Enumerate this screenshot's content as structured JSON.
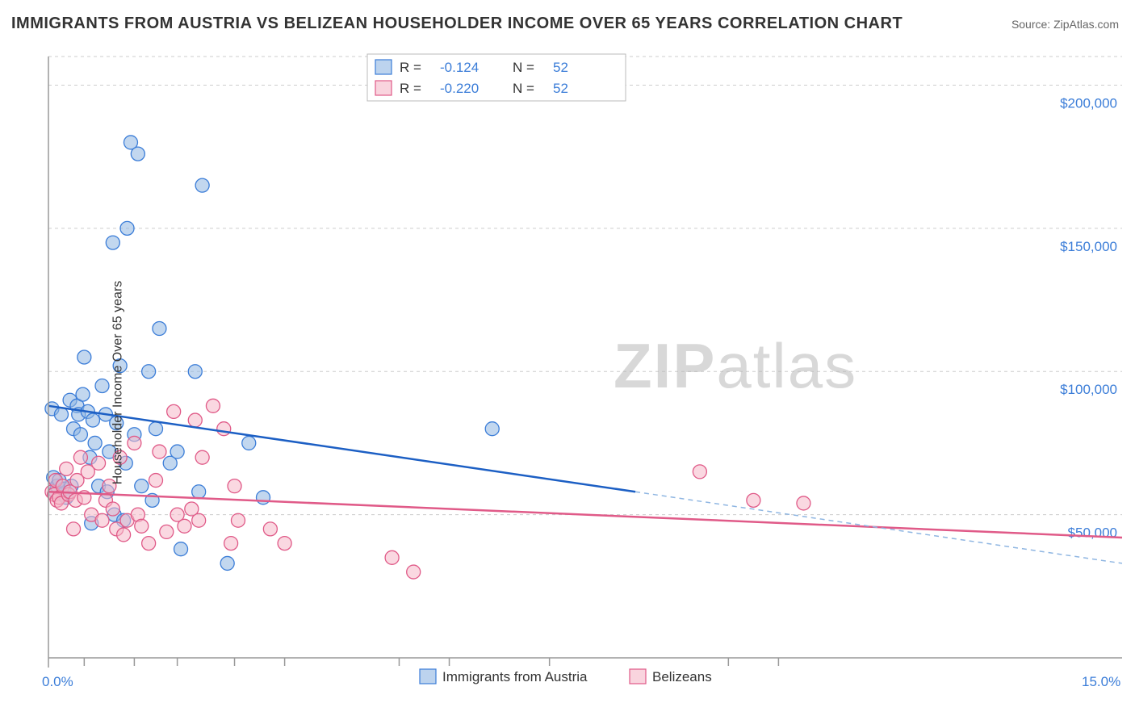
{
  "title": "IMMIGRANTS FROM AUSTRIA VS BELIZEAN HOUSEHOLDER INCOME OVER 65 YEARS CORRELATION CHART",
  "source": "Source: ZipAtlas.com",
  "ylabel": "Householder Income Over 65 years",
  "watermark_a": "ZIP",
  "watermark_b": "atlas",
  "chart": {
    "type": "scatter-regression",
    "background_color": "#ffffff",
    "grid_color": "#cccccc",
    "axis_color": "#999999",
    "label_color": "#3b7dd8",
    "xlim": [
      0,
      15
    ],
    "ylim": [
      0,
      210000
    ],
    "y_ticks": [
      50000,
      100000,
      150000,
      200000
    ],
    "y_tick_labels": [
      "$50,000",
      "$100,000",
      "$150,000",
      "$200,000"
    ],
    "x_minor_ticks": [
      0.5,
      1.2,
      1.8,
      2.6,
      3.3,
      4.9,
      5.6,
      7.0,
      9.5,
      10.2
    ],
    "x_min_label": "0.0%",
    "x_max_label": "15.0%",
    "marker_radius": 8.5,
    "series": [
      {
        "name": "Immigrants from Austria",
        "css": "series-blue",
        "R": "-0.124",
        "N": "52",
        "trend_solid": {
          "x1": 0,
          "y1": 88000,
          "x2": 8.2,
          "y2": 58000
        },
        "trend_dash": {
          "x1": 8.2,
          "y1": 58000,
          "x2": 15,
          "y2": 33000
        },
        "points": [
          [
            0.05,
            87000
          ],
          [
            0.07,
            63000
          ],
          [
            0.1,
            58000
          ],
          [
            0.12,
            60000
          ],
          [
            0.15,
            62000
          ],
          [
            0.18,
            85000
          ],
          [
            0.2,
            57000
          ],
          [
            0.22,
            59000
          ],
          [
            0.25,
            56000
          ],
          [
            0.3,
            90000
          ],
          [
            0.32,
            60000
          ],
          [
            0.35,
            80000
          ],
          [
            0.4,
            88000
          ],
          [
            0.42,
            85000
          ],
          [
            0.45,
            78000
          ],
          [
            0.48,
            92000
          ],
          [
            0.5,
            105000
          ],
          [
            0.55,
            86000
          ],
          [
            0.58,
            70000
          ],
          [
            0.6,
            47000
          ],
          [
            0.62,
            83000
          ],
          [
            0.65,
            75000
          ],
          [
            0.7,
            60000
          ],
          [
            0.75,
            95000
          ],
          [
            0.8,
            85000
          ],
          [
            0.82,
            58000
          ],
          [
            0.85,
            72000
          ],
          [
            0.9,
            145000
          ],
          [
            0.92,
            50000
          ],
          [
            0.95,
            82000
          ],
          [
            1.0,
            102000
          ],
          [
            1.05,
            48000
          ],
          [
            1.08,
            68000
          ],
          [
            1.1,
            150000
          ],
          [
            1.15,
            180000
          ],
          [
            1.2,
            78000
          ],
          [
            1.25,
            176000
          ],
          [
            1.3,
            60000
          ],
          [
            1.4,
            100000
          ],
          [
            1.45,
            55000
          ],
          [
            1.5,
            80000
          ],
          [
            1.55,
            115000
          ],
          [
            1.7,
            68000
          ],
          [
            1.8,
            72000
          ],
          [
            1.85,
            38000
          ],
          [
            2.05,
            100000
          ],
          [
            2.1,
            58000
          ],
          [
            2.15,
            165000
          ],
          [
            2.5,
            33000
          ],
          [
            2.8,
            75000
          ],
          [
            3.0,
            56000
          ],
          [
            6.2,
            80000
          ]
        ]
      },
      {
        "name": "Belizeans",
        "css": "series-pink",
        "R": "-0.220",
        "N": "52",
        "trend": {
          "x1": 0,
          "y1": 58000,
          "x2": 15,
          "y2": 42000
        },
        "points": [
          [
            0.05,
            58000
          ],
          [
            0.08,
            57000
          ],
          [
            0.1,
            62000
          ],
          [
            0.12,
            55000
          ],
          [
            0.15,
            56000
          ],
          [
            0.18,
            54000
          ],
          [
            0.2,
            60000
          ],
          [
            0.25,
            66000
          ],
          [
            0.28,
            57000
          ],
          [
            0.3,
            58000
          ],
          [
            0.35,
            45000
          ],
          [
            0.38,
            55000
          ],
          [
            0.4,
            62000
          ],
          [
            0.45,
            70000
          ],
          [
            0.5,
            56000
          ],
          [
            0.55,
            65000
          ],
          [
            0.6,
            50000
          ],
          [
            0.7,
            68000
          ],
          [
            0.75,
            48000
          ],
          [
            0.8,
            55000
          ],
          [
            0.85,
            60000
          ],
          [
            0.9,
            52000
          ],
          [
            0.95,
            45000
          ],
          [
            1.0,
            70000
          ],
          [
            1.05,
            43000
          ],
          [
            1.1,
            48000
          ],
          [
            1.2,
            75000
          ],
          [
            1.25,
            50000
          ],
          [
            1.3,
            46000
          ],
          [
            1.4,
            40000
          ],
          [
            1.5,
            62000
          ],
          [
            1.55,
            72000
          ],
          [
            1.65,
            44000
          ],
          [
            1.75,
            86000
          ],
          [
            1.8,
            50000
          ],
          [
            1.9,
            46000
          ],
          [
            2.0,
            52000
          ],
          [
            2.05,
            83000
          ],
          [
            2.1,
            48000
          ],
          [
            2.15,
            70000
          ],
          [
            2.3,
            88000
          ],
          [
            2.45,
            80000
          ],
          [
            2.55,
            40000
          ],
          [
            2.6,
            60000
          ],
          [
            2.65,
            48000
          ],
          [
            3.1,
            45000
          ],
          [
            3.3,
            40000
          ],
          [
            4.8,
            35000
          ],
          [
            5.1,
            30000
          ],
          [
            9.1,
            65000
          ],
          [
            9.85,
            55000
          ],
          [
            10.55,
            54000
          ]
        ]
      }
    ],
    "legend_bottom": {
      "series_a": "Immigrants from Austria",
      "series_b": "Belizeans"
    },
    "legend_top": {
      "R_label": "R  =",
      "N_label": "N  ="
    }
  }
}
